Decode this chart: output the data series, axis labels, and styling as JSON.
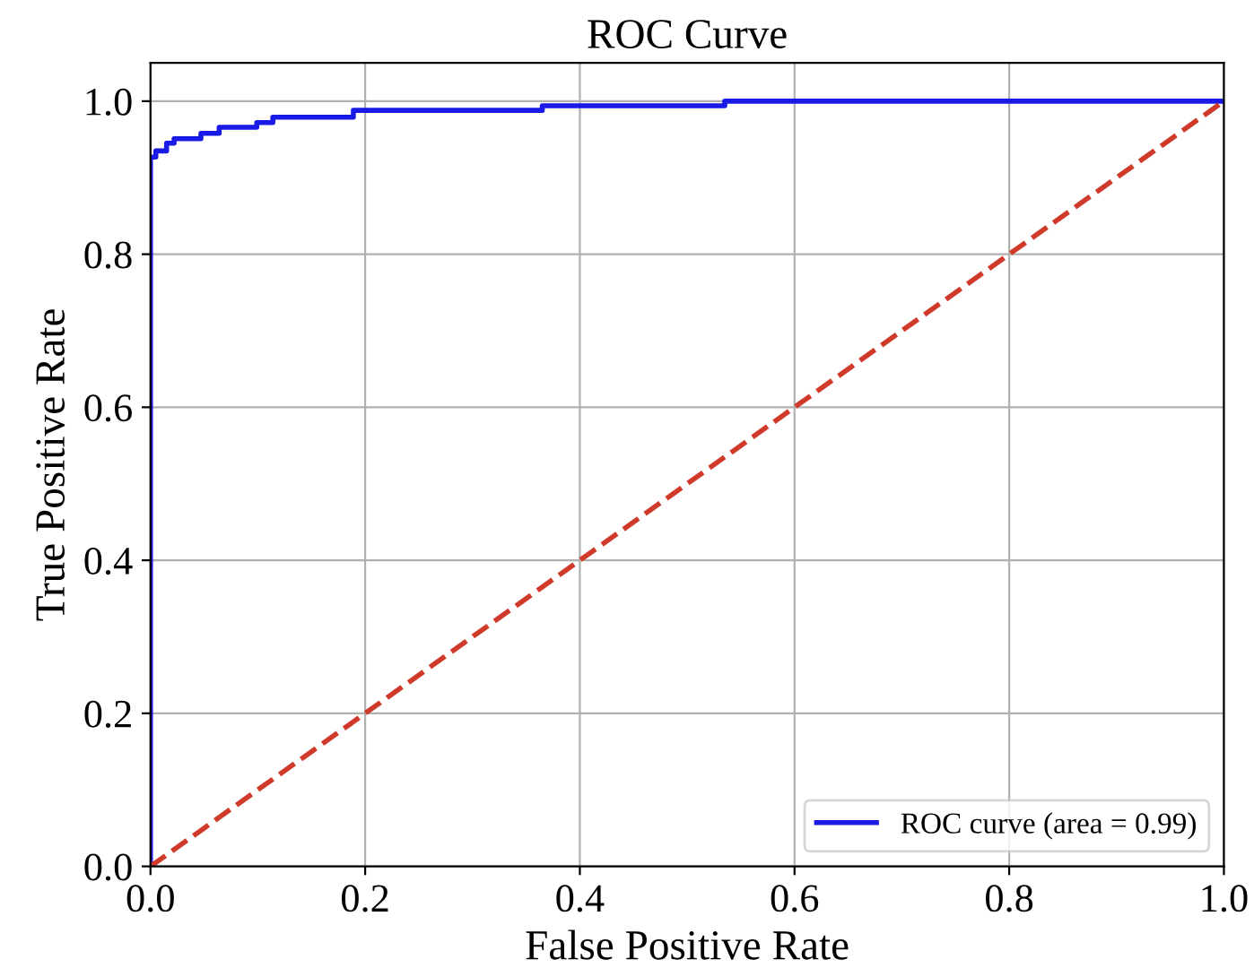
{
  "chart_data": {
    "type": "line",
    "title": "ROC Curve",
    "xlabel": "False Positive Rate",
    "ylabel": "True Positive Rate",
    "series": [
      {
        "name": "ROC curve (area = 0.99)",
        "type": "step",
        "color": "#1a1ae6",
        "x": [
          0,
          0,
          0.005,
          0.015,
          0.022,
          0.047,
          0.064,
          0.099,
          0.114,
          0.189,
          0.365,
          0.535,
          1.0
        ],
        "values": [
          0,
          0.927,
          0.935,
          0.945,
          0.951,
          0.958,
          0.966,
          0.972,
          0.979,
          0.988,
          0.994,
          1.0,
          1.0
        ]
      },
      {
        "color": "#d03a2a",
        "line_style": "dashed",
        "x": [
          0,
          1
        ],
        "values": [
          0,
          1
        ]
      }
    ],
    "xlim": [
      0.0,
      1.0
    ],
    "ylim": [
      0.0,
      1.05
    ],
    "xticks": [
      {
        "value": 0,
        "label": "0.0"
      },
      0.2,
      0.4,
      0.6,
      0.8,
      {
        "value": 1,
        "label": "1.0"
      }
    ],
    "yticks": [
      {
        "value": 0,
        "label": "0.0"
      },
      0.2,
      0.4,
      0.6,
      0.8,
      {
        "value": 1,
        "label": "1.0"
      }
    ],
    "grid": true,
    "legend": "bottom right"
  }
}
